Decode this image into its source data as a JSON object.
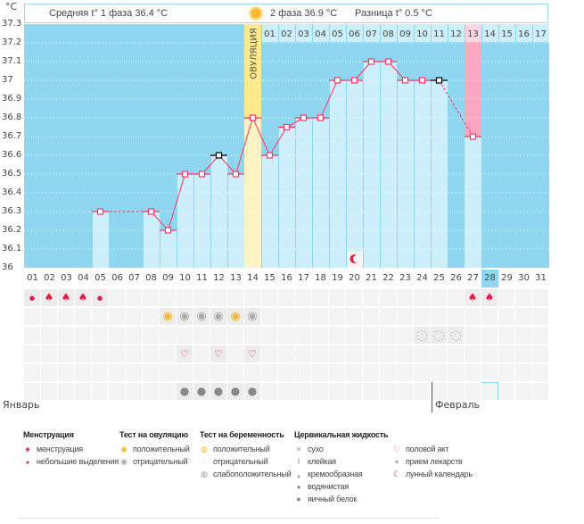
{
  "unit": "°C",
  "header": {
    "phase1": "Средняя t° 1 фаза 36.4 °C",
    "phase2": "2 фаза 36.9 °C",
    "diff": "Разница t° 0.5 °C",
    "ovulation_label": "ОВУЛЯЦИЯ"
  },
  "colors": {
    "bg": "#8fd7f0",
    "bar": "#cdeefb",
    "ovulation": "#fbe98a",
    "period": "#f9a8c0",
    "line": "#ff3366"
  },
  "y_ticks": [
    "37.3",
    "37.2",
    "37.1",
    "37",
    "36.9",
    "36.8",
    "36.7",
    "36.6",
    "36.5",
    "36.4",
    "36.3",
    "36.2",
    "36.1",
    "36"
  ],
  "cycle_days": [
    "01",
    "02",
    "03",
    "04",
    "05",
    "06",
    "07",
    "08",
    "09",
    "10",
    "11",
    "12",
    "13",
    "14",
    "15",
    "16",
    "17",
    "18",
    "19",
    "20",
    "21",
    "22",
    "23",
    "24",
    "25",
    "26",
    "27",
    "28",
    "29",
    "30",
    "31"
  ],
  "phase2_days": [
    "01",
    "02",
    "03",
    "04",
    "05",
    "06",
    "07",
    "08",
    "09",
    "10",
    "11",
    "12",
    "13",
    "14",
    "15",
    "16",
    "17"
  ],
  "ovulation_day": 14,
  "period_day": 27,
  "today_day": 28,
  "temps": [
    null,
    null,
    null,
    null,
    36.3,
    null,
    null,
    36.3,
    36.2,
    36.5,
    36.5,
    36.6,
    36.5,
    36.8,
    36.6,
    36.75,
    36.8,
    36.8,
    37.0,
    37.0,
    37.1,
    37.1,
    37.0,
    37.0,
    37.0,
    null,
    36.7,
    null,
    null,
    null,
    null
  ],
  "calendar_dates": [
    "08",
    "09",
    "10",
    "11",
    "12",
    "13",
    "14",
    "15",
    "16",
    "17",
    "18",
    "19",
    "20",
    "21",
    "22",
    "23",
    "24",
    "25",
    "26",
    "27",
    "28",
    "29",
    "30",
    "31",
    "01",
    "02",
    "03",
    "04",
    "05",
    "06",
    "07"
  ],
  "weekend_days": [
    4,
    5,
    11,
    12,
    18,
    19,
    25,
    26
  ],
  "months": [
    "Январь",
    "Февраль"
  ],
  "moon_day": 20,
  "rows": {
    "menstruation": {
      "1": "small",
      "2": "menstruation",
      "3": "menstruation",
      "4": "menstruation",
      "5": "small",
      "27": "menstruation",
      "28": "menstruation"
    },
    "ovulation_test": {
      "9": "positive",
      "10": "negative",
      "11": "negative",
      "12": "negative",
      "13": "positive",
      "14": "negative"
    },
    "pregnancy_test": {
      "24": "negative",
      "25": "negative",
      "26": "negative"
    },
    "intercourse": {
      "10": "heart",
      "12": "heart",
      "14": "heart"
    },
    "medication": {},
    "cervical": {
      "10": "egg-white",
      "11": "egg-white",
      "12": "egg-white",
      "13": "egg-white",
      "14": "egg-white"
    }
  },
  "legend": {
    "menstruation": {
      "title": "Менструация",
      "items": [
        "менструация",
        "небольшие выделения"
      ]
    },
    "ovulation_test": {
      "title": "Тест на овуляцию",
      "items": [
        "положительный",
        "отрицательный"
      ]
    },
    "pregnancy_test": {
      "title": "Тест на беременность",
      "items": [
        "положительный",
        "отрицательный",
        "слабоположительный"
      ]
    },
    "cervical": {
      "title": "Цервикальная жидкость",
      "items": [
        "сухо",
        "клейкая",
        "кремообразная",
        "водянистая",
        "яичный белок"
      ]
    },
    "other": {
      "items": [
        "половой акт",
        "прием лекарств",
        "лунный календарь"
      ]
    }
  }
}
